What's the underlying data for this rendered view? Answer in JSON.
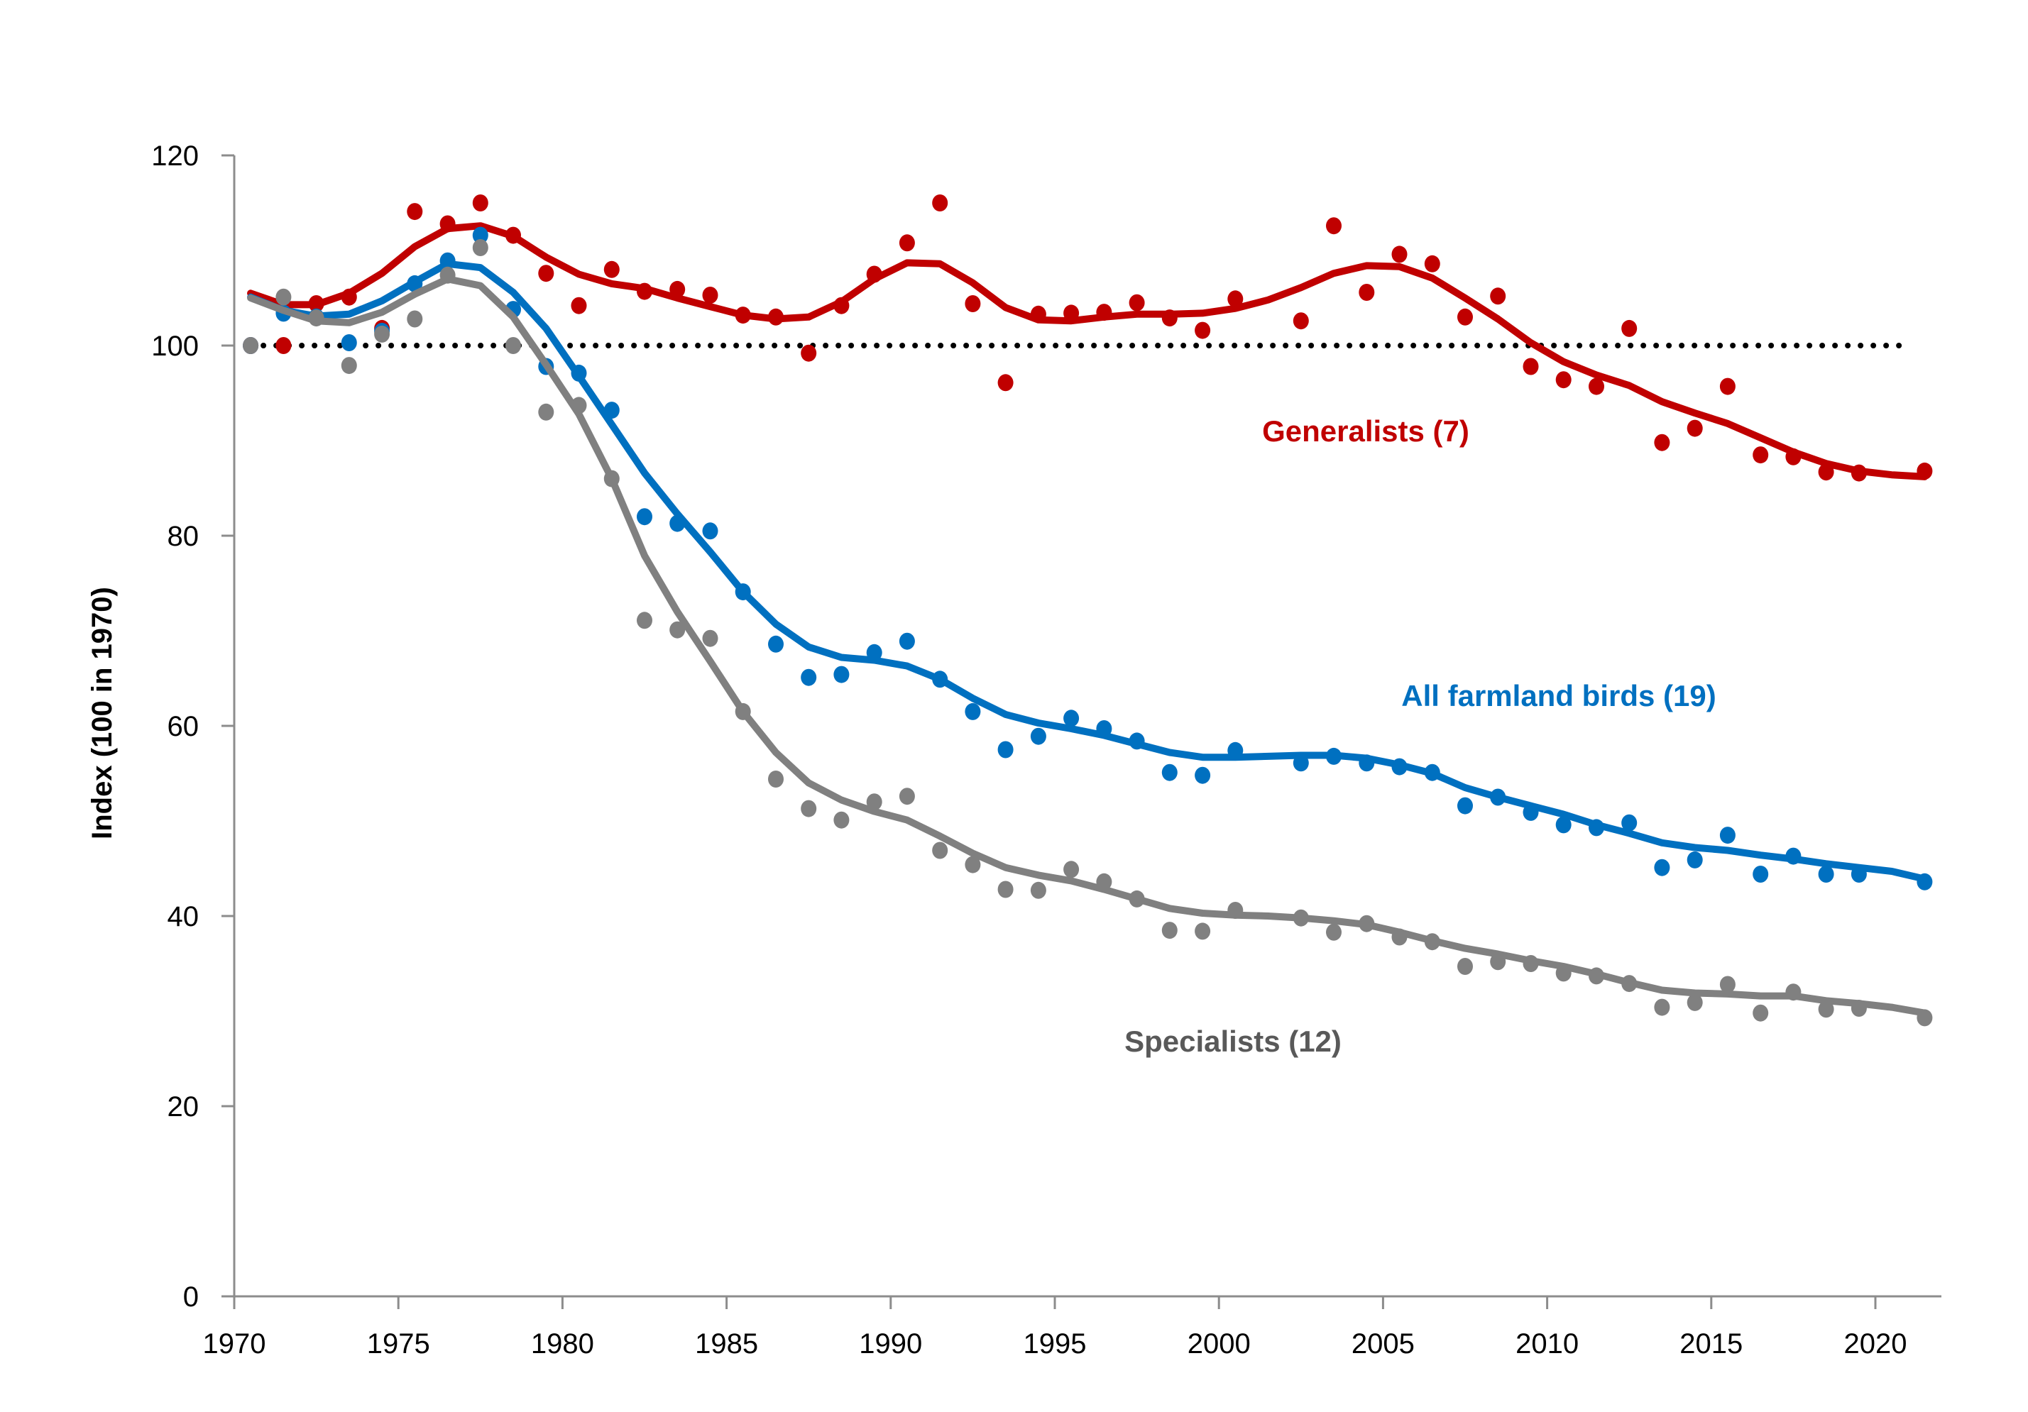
{
  "chart_data": {
    "type": "line",
    "title": "",
    "xlabel": "",
    "ylabel": "Index (100 in 1970)",
    "xlim": [
      1970,
      2022
    ],
    "ylim": [
      0,
      120
    ],
    "x_ticks": [
      1970,
      1975,
      1980,
      1985,
      1990,
      1995,
      2000,
      2005,
      2010,
      2015,
      2020
    ],
    "x_tick_labels": [
      "1970",
      "1975",
      "1980",
      "1985",
      "1990",
      "1995",
      "2000",
      "2005",
      "2010",
      "2015",
      "2020"
    ],
    "y_ticks": [
      0,
      20,
      40,
      60,
      80,
      100,
      120
    ],
    "y_tick_labels": [
      "0",
      "20",
      "40",
      "60",
      "80",
      "100",
      "120"
    ],
    "grid": false,
    "legend": "none (inline series labels)",
    "reference_line": {
      "value": 100,
      "style": "dotted",
      "color": "#000000"
    },
    "years": [
      1970,
      1971,
      1972,
      1973,
      1974,
      1975,
      1976,
      1977,
      1978,
      1979,
      1980,
      1981,
      1982,
      1983,
      1984,
      1985,
      1986,
      1987,
      1988,
      1989,
      1990,
      1991,
      1992,
      1993,
      1994,
      1995,
      1996,
      1997,
      1998,
      1999,
      2000,
      2001,
      2002,
      2003,
      2004,
      2005,
      2006,
      2007,
      2008,
      2009,
      2010,
      2011,
      2012,
      2013,
      2014,
      2015,
      2016,
      2017,
      2018,
      2019,
      2020,
      2021
    ],
    "series": [
      {
        "name": "Generalists (7)",
        "label": "Generalists (7)",
        "color": "#C00000",
        "label_color": "#C00000",
        "points": [
          100,
          100,
          104.4,
          105.1,
          101.8,
          114.1,
          112.8,
          115.0,
          111.6,
          107.6,
          104.2,
          108.0,
          105.7,
          105.9,
          105.3,
          103.2,
          103.0,
          99.2,
          104.2,
          107.5,
          110.8,
          115.0,
          104.4,
          96.1,
          103.3,
          103.4,
          103.5,
          104.5,
          102.9,
          101.6,
          104.9,
          null,
          102.6,
          112.6,
          105.6,
          109.6,
          108.6,
          103.0,
          105.2,
          97.8,
          96.4,
          95.7,
          101.8,
          89.8,
          91.3,
          95.7,
          88.5,
          88.3,
          86.7,
          86.6,
          null,
          86.8
        ],
        "trend": [
          105.5,
          104.3,
          104.3,
          105.5,
          107.6,
          110.4,
          112.3,
          112.6,
          111.5,
          109.3,
          107.5,
          106.5,
          106.0,
          105.0,
          104.1,
          103.2,
          102.8,
          103.0,
          104.6,
          107.0,
          108.7,
          108.6,
          106.6,
          104.0,
          102.7,
          102.6,
          103.0,
          103.3,
          103.3,
          103.4,
          103.9,
          104.8,
          106.1,
          107.6,
          108.4,
          108.3,
          107.1,
          105.0,
          102.8,
          100.3,
          98.3,
          96.9,
          95.8,
          94.1,
          92.9,
          91.8,
          90.3,
          88.8,
          87.6,
          86.8,
          86.4,
          86.2
        ]
      },
      {
        "name": "All farmland birds (19)",
        "label": "All farmland birds (19)",
        "color": "#0070C0",
        "label_color": "#0070C0",
        "points": [
          100,
          103.4,
          103.0,
          100.3,
          101.5,
          106.5,
          108.9,
          111.6,
          103.8,
          97.8,
          97.1,
          93.2,
          82.0,
          81.3,
          80.5,
          74.1,
          68.6,
          65.1,
          65.4,
          67.7,
          68.9,
          64.9,
          61.5,
          57.5,
          58.9,
          60.8,
          59.7,
          58.4,
          55.1,
          54.8,
          57.4,
          null,
          56.1,
          56.8,
          56.1,
          55.7,
          55.1,
          51.6,
          52.5,
          50.9,
          49.6,
          49.3,
          49.8,
          45.1,
          45.9,
          48.5,
          44.4,
          46.3,
          44.4,
          44.4,
          null,
          43.6
        ],
        "trend": [
          105.1,
          103.7,
          103.1,
          103.3,
          104.7,
          106.7,
          108.6,
          108.2,
          105.6,
          101.8,
          96.8,
          91.7,
          86.6,
          82.3,
          78.3,
          74.1,
          70.7,
          68.3,
          67.2,
          66.9,
          66.3,
          64.9,
          62.9,
          61.2,
          60.3,
          59.7,
          59.0,
          58.1,
          57.2,
          56.7,
          56.7,
          56.8,
          56.9,
          56.9,
          56.6,
          55.9,
          55.0,
          53.5,
          52.5,
          51.6,
          50.7,
          49.6,
          48.7,
          47.7,
          47.2,
          46.9,
          46.4,
          46.0,
          45.5,
          45.1,
          44.7,
          43.9
        ]
      },
      {
        "name": "Specialists (12)",
        "label": "Specialists  (12)",
        "color": "#808080",
        "label_color": "#595959",
        "points": [
          100,
          105.1,
          102.9,
          97.9,
          101.2,
          102.8,
          107.4,
          110.3,
          100.0,
          93.0,
          93.7,
          86.0,
          71.1,
          70.1,
          69.2,
          61.5,
          54.4,
          51.3,
          50.1,
          52.0,
          52.6,
          46.9,
          45.4,
          42.8,
          42.7,
          44.9,
          43.6,
          41.8,
          38.5,
          38.4,
          40.6,
          null,
          39.8,
          38.3,
          39.2,
          37.8,
          37.3,
          34.7,
          35.2,
          35.0,
          34.0,
          33.7,
          32.9,
          30.4,
          30.9,
          32.8,
          29.8,
          32.0,
          30.2,
          30.3,
          null,
          29.3
        ],
        "trend": [
          105.0,
          103.7,
          102.6,
          102.4,
          103.5,
          105.4,
          107.0,
          106.3,
          103.0,
          98.0,
          92.8,
          86.0,
          77.9,
          72.0,
          66.8,
          61.5,
          57.2,
          54.0,
          52.2,
          51.0,
          50.1,
          48.4,
          46.6,
          45.1,
          44.3,
          43.7,
          42.8,
          41.8,
          40.8,
          40.3,
          40.1,
          40.0,
          39.8,
          39.5,
          39.1,
          38.3,
          37.4,
          36.6,
          36.0,
          35.3,
          34.7,
          33.9,
          33.0,
          32.2,
          31.9,
          31.8,
          31.6,
          31.6,
          31.1,
          30.8,
          30.4,
          29.8
        ]
      }
    ]
  }
}
